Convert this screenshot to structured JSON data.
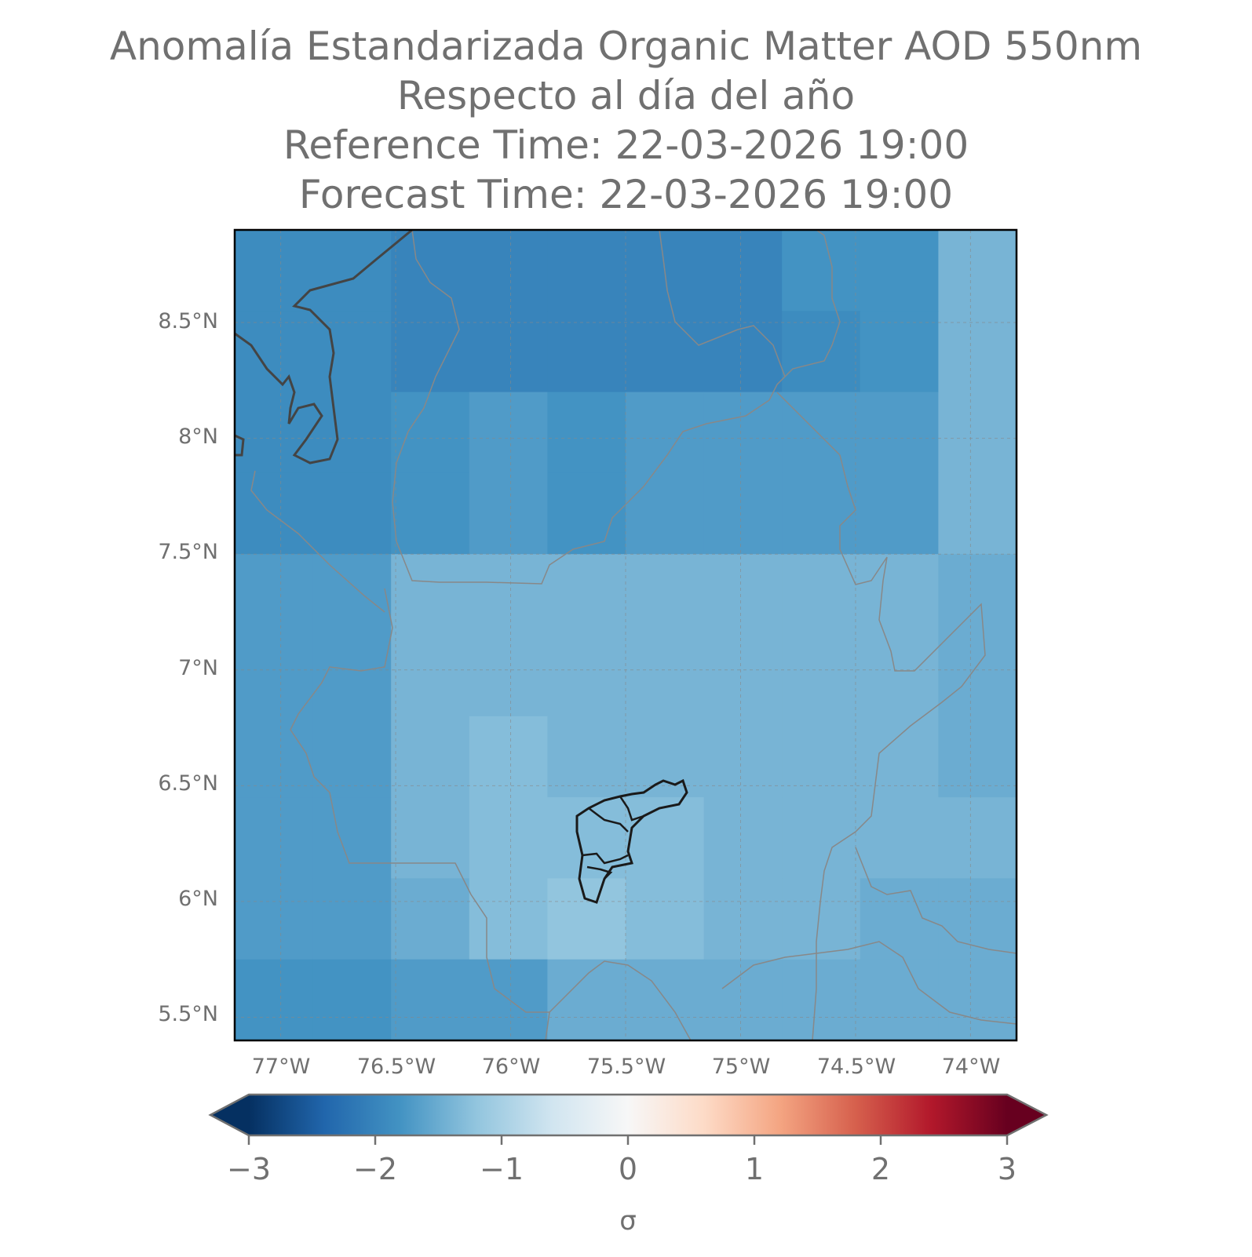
{
  "title": {
    "line1": "Anomalía Estandarizada Organic Matter AOD 550nm",
    "line2": "Respecto al día del año",
    "line3": "Reference Time: 22-03-2026 19:00",
    "line4": "Forecast Time: 22-03-2026 19:00"
  },
  "map": {
    "lat_ticks": [
      "8.5°N",
      "8°N",
      "7.5°N",
      "7°N",
      "6.5°N",
      "6°N",
      "5.5°N"
    ],
    "lon_ticks": [
      "77°W",
      "76.5°W",
      "76°W",
      "75.5°W",
      "75°W",
      "74.5°W",
      "74°W"
    ],
    "extent": {
      "lon_min": -77.2,
      "lon_max": -73.8,
      "lat_min": 5.4,
      "lat_max": 8.9
    },
    "grid_cells_sigma": [
      [
        -1.9,
        -1.9,
        -2.0,
        -2.0,
        -2.0,
        -2.0,
        -2.0,
        -1.8,
        -1.8,
        -1.4
      ],
      [
        -1.9,
        -1.9,
        -2.0,
        -2.0,
        -2.0,
        -2.0,
        -2.0,
        -1.9,
        -1.8,
        -1.4
      ],
      [
        -1.9,
        -1.9,
        -1.8,
        -1.7,
        -1.8,
        -1.7,
        -1.7,
        -1.7,
        -1.7,
        -1.4
      ],
      [
        -1.9,
        -1.9,
        -1.8,
        -1.7,
        -1.8,
        -1.7,
        -1.7,
        -1.7,
        -1.7,
        -1.4
      ],
      [
        -1.7,
        -1.7,
        -1.4,
        -1.4,
        -1.4,
        -1.4,
        -1.4,
        -1.4,
        -1.4,
        -1.5
      ],
      [
        -1.7,
        -1.7,
        -1.4,
        -1.4,
        -1.4,
        -1.4,
        -1.4,
        -1.4,
        -1.4,
        -1.5
      ],
      [
        -1.7,
        -1.7,
        -1.4,
        -1.3,
        -1.4,
        -1.4,
        -1.4,
        -1.4,
        -1.4,
        -1.5
      ],
      [
        -1.7,
        -1.7,
        -1.4,
        -1.3,
        -1.3,
        -1.3,
        -1.4,
        -1.4,
        -1.4,
        -1.4
      ],
      [
        -1.7,
        -1.7,
        -1.5,
        -1.3,
        -1.2,
        -1.3,
        -1.4,
        -1.4,
        -1.5,
        -1.5
      ],
      [
        -1.8,
        -1.8,
        -1.7,
        -1.7,
        -1.5,
        -1.5,
        -1.5,
        -1.5,
        -1.5,
        -1.5
      ]
    ]
  },
  "colorbar": {
    "ticks": [
      "−3",
      "−2",
      "−1",
      "0",
      "1",
      "2",
      "3"
    ],
    "label": "σ",
    "colormap": [
      "#053061",
      "#2166ac",
      "#4393c3",
      "#92c5de",
      "#d1e5f0",
      "#f7f7f7",
      "#fddbc7",
      "#f4a582",
      "#d6604d",
      "#b2182b",
      "#67001f"
    ]
  }
}
